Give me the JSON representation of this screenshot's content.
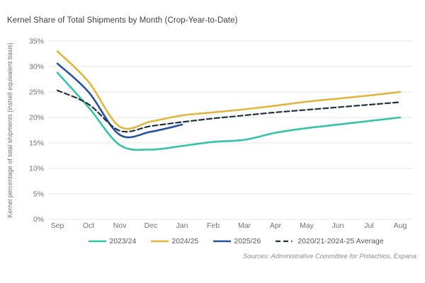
{
  "title": "Kernel Share of Total Shipments by Month (Crop-Year-to-Date)",
  "source_note": "Sources: Administrative Committee for Pistachios, Expana",
  "chart_data": {
    "type": "line",
    "title": "Kernel Share of Total Shipments by Month (Crop-Year-to-Date)",
    "xlabel": "",
    "ylabel": "Kernel percentage of total shipments (inshell equivalent basis)",
    "ylim": [
      0,
      35
    ],
    "grid": "horizontal",
    "grid_color": "#e6e6e6",
    "legend_position": "bottom",
    "yticks": [
      {
        "value": 35,
        "label": "35%"
      },
      {
        "value": 30,
        "label": "30%"
      },
      {
        "value": 25,
        "label": "25%"
      },
      {
        "value": 20,
        "label": "20%"
      },
      {
        "value": 15,
        "label": "15%"
      },
      {
        "value": 10,
        "label": "10%"
      },
      {
        "value": 5,
        "label": "5%"
      },
      {
        "value": 0,
        "label": "0%"
      }
    ],
    "categories": [
      "Sep",
      "Oct",
      "Nov",
      "Dec",
      "Jan",
      "Feb",
      "Mar",
      "Apr",
      "May",
      "Jun",
      "Jul",
      "Aug"
    ],
    "series": [
      {
        "name": "2023/24",
        "color": "#35c2ac",
        "dash": false,
        "values": [
          28.8,
          22.0,
          14.6,
          13.7,
          14.4,
          15.2,
          15.6,
          17.0,
          17.9,
          18.6,
          19.3,
          20.0
        ]
      },
      {
        "name": "2024/25",
        "color": "#e2b53e",
        "dash": false,
        "values": [
          33.0,
          27.0,
          18.2,
          19.2,
          20.4,
          21.0,
          21.6,
          22.3,
          23.1,
          23.7,
          24.3,
          25.0
        ]
      },
      {
        "name": "2025/26",
        "color": "#2352a0",
        "dash": false,
        "values": [
          30.6,
          25.0,
          16.6,
          17.2,
          18.6
        ]
      },
      {
        "name": "2020/21-2024-25 Average",
        "color": "#223240",
        "dash": true,
        "values": [
          25.3,
          22.6,
          17.4,
          18.3,
          19.1,
          19.8,
          20.4,
          21.0,
          21.5,
          22.0,
          22.5,
          23.0
        ]
      }
    ]
  }
}
